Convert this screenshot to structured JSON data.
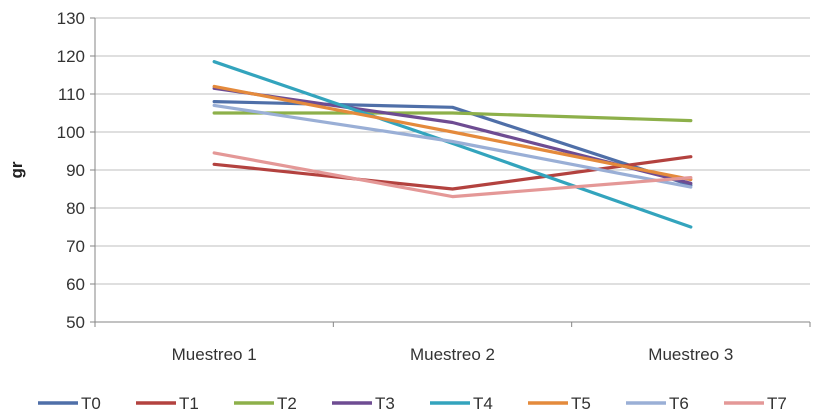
{
  "chart_data": {
    "type": "line",
    "title": "",
    "xlabel": "",
    "ylabel": "gr",
    "ylim": [
      50,
      130
    ],
    "yticks": [
      50,
      60,
      70,
      80,
      90,
      100,
      110,
      120,
      130
    ],
    "grid": true,
    "legend": "bottom",
    "categories": [
      "Muestreo 1",
      "Muestreo 2",
      "Muestreo 3"
    ],
    "series": [
      {
        "name": "T0",
        "color": "#4F6FA8",
        "values": [
          108,
          106.5,
          86
        ]
      },
      {
        "name": "T1",
        "color": "#B3423F",
        "values": [
          91.5,
          85,
          93.5
        ]
      },
      {
        "name": "T2",
        "color": "#8DB04A",
        "values": [
          105,
          105,
          103
        ]
      },
      {
        "name": "T3",
        "color": "#6E4C92",
        "values": [
          111.5,
          102.5,
          86.5
        ]
      },
      {
        "name": "T4",
        "color": "#33A4BD",
        "values": [
          118.5,
          97,
          75
        ]
      },
      {
        "name": "T5",
        "color": "#E48A3C",
        "values": [
          112,
          100,
          87.5
        ]
      },
      {
        "name": "T6",
        "color": "#9AAFD6",
        "values": [
          107,
          97.5,
          85.5
        ]
      },
      {
        "name": "T7",
        "color": "#E49897",
        "values": [
          94.5,
          83,
          88
        ]
      }
    ]
  }
}
